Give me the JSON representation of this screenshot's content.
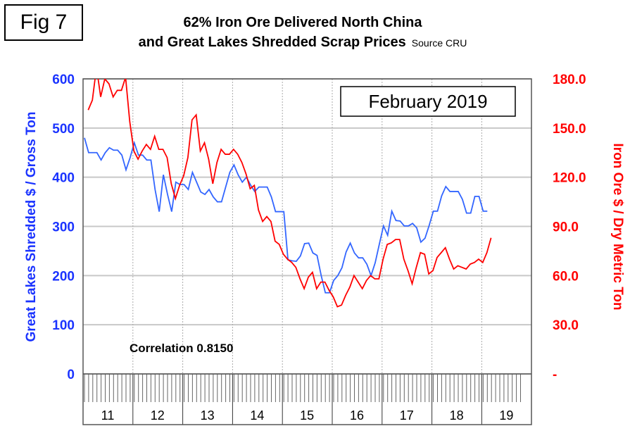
{
  "fig_label": "Fig 7",
  "chart_data": {
    "type": "line",
    "title_line1": "62% Iron Ore Delivered North China",
    "title_line2": "and Great Lakes Shredded Scrap Prices",
    "source": "Source CRU",
    "date_box": "February 2019",
    "annotation": "Correlation 0.8150",
    "ylabel_left": "Great Lakes Shredded $ / Gross Ton",
    "ylabel_right": "Iron Ore $ / Dry Metric Ton",
    "ylim_left": [
      0,
      600
    ],
    "ylim_right": [
      0,
      180
    ],
    "yticks_left": [
      "0",
      "100",
      "200",
      "300",
      "400",
      "500",
      "600"
    ],
    "yticks_right": [
      "-",
      "30.0",
      "60.0",
      "90.0",
      "120.0",
      "150.0",
      "180.0"
    ],
    "xtick_labels": [
      "11",
      "12",
      "13",
      "14",
      "15",
      "16",
      "17",
      "18",
      "19"
    ],
    "x_start": "Jan 2011",
    "x_end": "Feb 2019",
    "frequency": "monthly",
    "grid": true,
    "series": [
      {
        "name": "Great Lakes Shredded Scrap",
        "axis": "left",
        "color": "#3366ff",
        "values": [
          480,
          450,
          450,
          450,
          435,
          450,
          460,
          455,
          455,
          445,
          415,
          440,
          470,
          445,
          445,
          435,
          435,
          375,
          330,
          405,
          365,
          330,
          390,
          385,
          385,
          375,
          410,
          390,
          370,
          365,
          375,
          360,
          350,
          350,
          380,
          410,
          425,
          405,
          390,
          400,
          384,
          371,
          380,
          380,
          380,
          360,
          330,
          330,
          330,
          232,
          230,
          229,
          240,
          265,
          266,
          246,
          241,
          200,
          165,
          165,
          190,
          200,
          216,
          248,
          266,
          246,
          236,
          236,
          223,
          200,
          226,
          264,
          301,
          282,
          331,
          312,
          311,
          301,
          301,
          306,
          297,
          268,
          276,
          302,
          331,
          331,
          362,
          381,
          371,
          371,
          371,
          355,
          327,
          327,
          361,
          361,
          331,
          331
        ]
      },
      {
        "name": "62% Iron Ore North China",
        "axis": "right",
        "color": "#ff0000",
        "values": [
          161,
          167,
          187,
          169,
          180,
          177,
          169,
          173,
          173,
          181,
          154,
          136,
          131,
          136,
          140,
          137,
          145,
          137,
          137,
          132,
          116,
          107,
          115,
          121,
          132,
          155,
          158,
          136,
          141,
          131,
          116,
          129,
          137,
          134,
          134,
          137,
          134,
          129,
          122,
          113,
          115,
          100,
          93,
          96,
          93,
          81,
          79,
          73,
          70,
          68,
          65,
          58,
          52,
          59,
          62,
          52,
          56,
          56,
          51,
          47,
          41,
          42,
          48,
          53,
          60,
          56,
          52,
          57,
          60,
          58,
          58,
          70,
          79,
          80,
          82,
          82,
          70,
          63,
          55,
          65,
          74,
          73,
          61,
          63,
          71,
          74,
          77,
          70,
          64,
          66,
          65,
          64,
          67,
          68,
          70,
          68,
          74,
          83
        ]
      }
    ]
  }
}
